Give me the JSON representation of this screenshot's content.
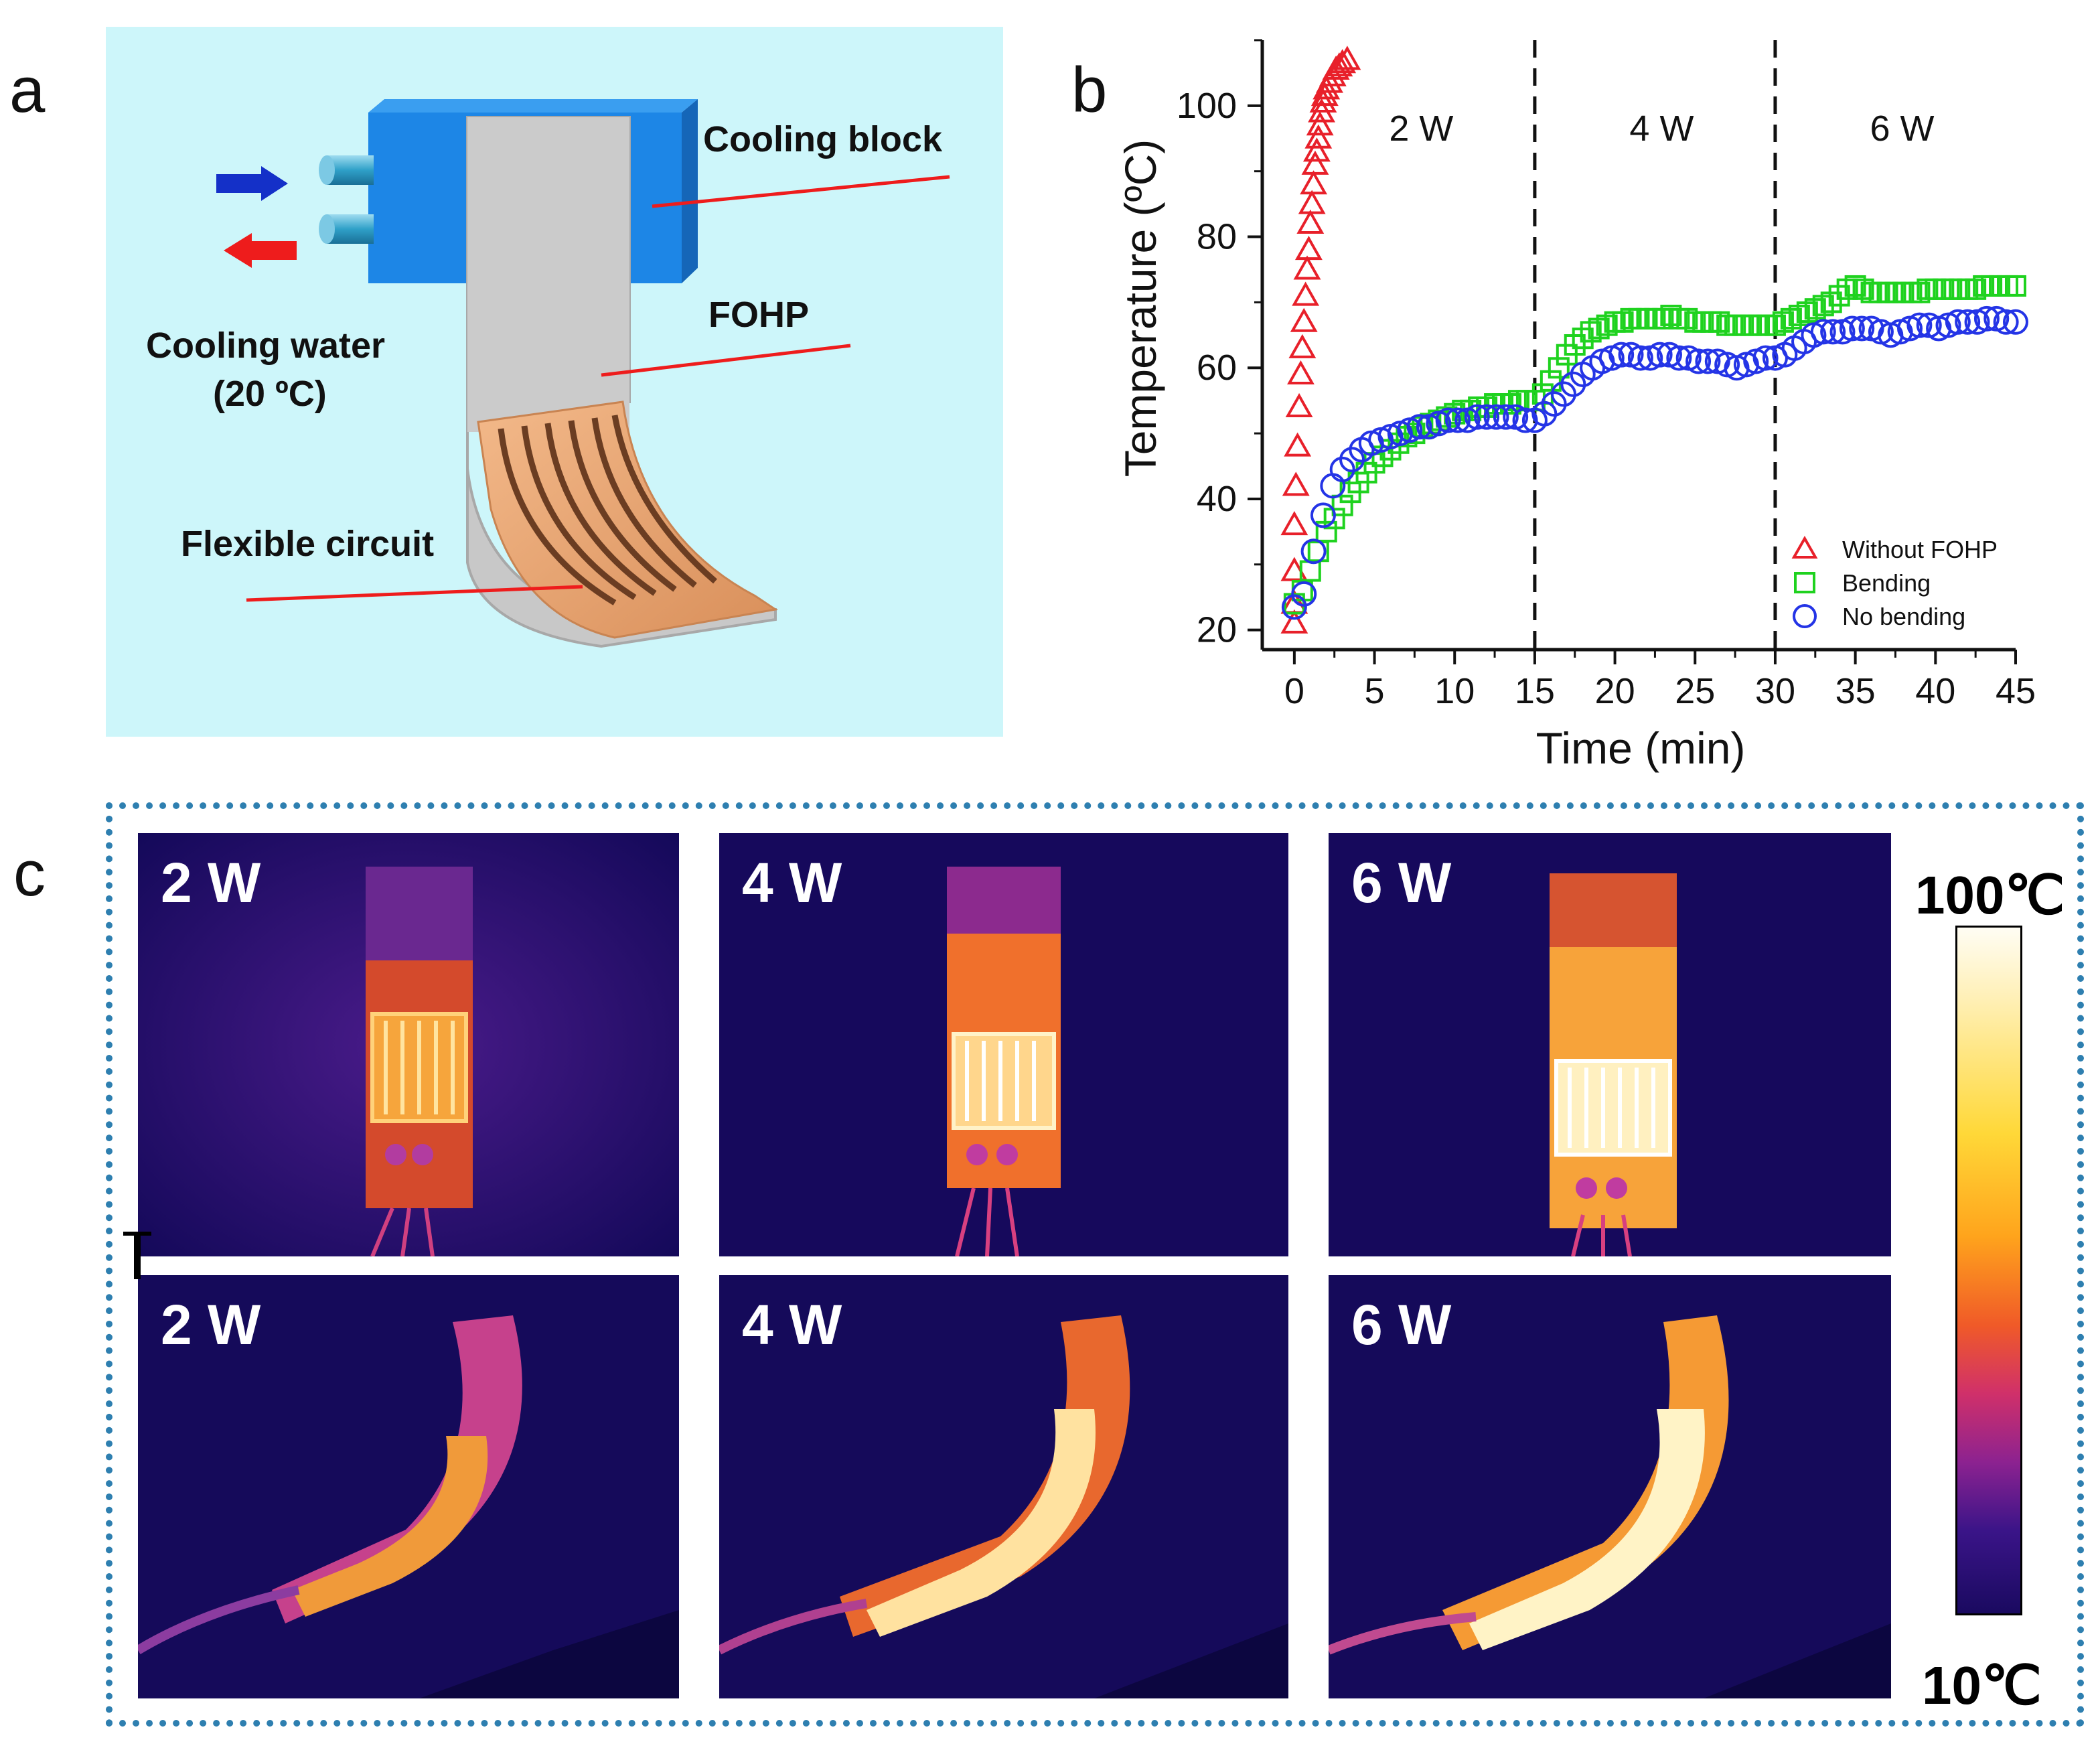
{
  "panel_labels": {
    "a": "a",
    "b": "b",
    "c": "c"
  },
  "panel_a": {
    "cooling_block": "Cooling block",
    "fohp": "FOHP",
    "cooling_water": "Cooling water",
    "cooling_water_temp": "(20 ºC)",
    "flexible_circuit": "Flexible circuit"
  },
  "chart_data": {
    "type": "scatter",
    "xlabel": "Time (min)",
    "ylabel": "Temperature (ºC)",
    "xlim": [
      -2,
      45
    ],
    "ylim": [
      17,
      110
    ],
    "xticks": [
      0,
      5,
      10,
      15,
      20,
      25,
      30,
      35,
      40,
      45
    ],
    "yticks": [
      20,
      40,
      60,
      80,
      100
    ],
    "segments": [
      {
        "label": "2 W",
        "start": 0,
        "end": 15
      },
      {
        "label": "4 W",
        "start": 15,
        "end": 30
      },
      {
        "label": "6 W",
        "start": 30,
        "end": 45
      }
    ],
    "legend_position": "bottom-right",
    "series": [
      {
        "name": "Without FOHP",
        "marker": "triangle",
        "color": "#e8202a",
        "x": [
          0,
          0,
          0,
          0,
          0.1,
          0.2,
          0.3,
          0.4,
          0.5,
          0.6,
          0.7,
          0.8,
          0.9,
          1.0,
          1.1,
          1.2,
          1.3,
          1.4,
          1.5,
          1.6,
          1.7,
          1.8,
          1.9,
          2.0,
          2.2,
          2.4,
          2.6,
          2.8,
          3.0,
          3.3
        ],
        "y": [
          21,
          24,
          29,
          36,
          42,
          48,
          54,
          59,
          63,
          67,
          71,
          75,
          78,
          82,
          85,
          88,
          91,
          93,
          95,
          97,
          99,
          100.5,
          101.5,
          102.5,
          103.5,
          104.5,
          105.5,
          106,
          106.5,
          107
        ]
      },
      {
        "name": "Bending",
        "marker": "square",
        "color": "#1fd21f",
        "x": [
          0,
          0.5,
          1,
          1.5,
          2,
          2.5,
          3,
          3.5,
          4,
          4.5,
          5,
          5.5,
          6,
          6.5,
          7,
          7.5,
          8,
          8.5,
          9,
          9.5,
          10,
          10.5,
          11,
          11.5,
          12,
          12.5,
          13,
          13.5,
          14,
          14.5,
          15,
          15.5,
          16,
          16.5,
          17,
          17.5,
          18,
          18.5,
          19,
          19.5,
          20,
          20.5,
          21,
          21.5,
          22,
          22.5,
          23,
          23.5,
          24,
          24.5,
          25,
          25.5,
          26,
          26.5,
          27,
          27.5,
          28,
          28.5,
          29,
          29.5,
          30,
          30.5,
          31,
          31.5,
          32,
          32.5,
          33,
          33.5,
          34,
          34.5,
          35,
          35.5,
          36,
          36.5,
          37,
          37.5,
          38,
          38.5,
          39,
          39.5,
          40,
          40.5,
          41,
          41.5,
          42,
          42.5,
          43,
          43.5,
          44,
          44.5,
          45
        ],
        "y": [
          24,
          26,
          29,
          32,
          35,
          37,
          39,
          41,
          42.5,
          44,
          45.5,
          46.5,
          47.5,
          48.5,
          49.5,
          50,
          51,
          51.5,
          52,
          52.5,
          53,
          53.5,
          53.5,
          54,
          54,
          54.5,
          54.5,
          54.5,
          55,
          55,
          55,
          56,
          58,
          60,
          62,
          63.5,
          64.5,
          65.5,
          66,
          66.5,
          67,
          67,
          67.5,
          67.5,
          67.5,
          67.5,
          67.5,
          68,
          67.5,
          67.5,
          67,
          67,
          67,
          67,
          66.5,
          66.5,
          66.5,
          66.5,
          66.5,
          66.5,
          66.5,
          67,
          67.5,
          68,
          68.5,
          69,
          69.5,
          70,
          71,
          72,
          72.5,
          72,
          71.5,
          71.5,
          71.5,
          71.5,
          71.5,
          71.5,
          71.5,
          72,
          72,
          72,
          72,
          72,
          72,
          72,
          72.5,
          72.5,
          72.5,
          72.5,
          72.5
        ]
      },
      {
        "name": "No bending",
        "marker": "circle",
        "color": "#2434e6",
        "x": [
          0,
          0.6,
          1.2,
          1.8,
          2.4,
          3.0,
          3.6,
          4.2,
          4.8,
          5.4,
          6,
          6.6,
          7.2,
          7.8,
          8.4,
          9,
          9.6,
          10.2,
          10.8,
          11.4,
          12,
          12.6,
          13.2,
          13.8,
          14.4,
          15,
          15.6,
          16.2,
          16.8,
          17.4,
          18,
          18.6,
          19.2,
          19.8,
          20.4,
          21,
          21.6,
          22.2,
          22.8,
          23.4,
          24,
          24.6,
          25.2,
          25.8,
          26.4,
          27,
          27.6,
          28.2,
          28.8,
          29.4,
          30,
          30.6,
          31.2,
          31.8,
          32.4,
          33,
          33.6,
          34.2,
          34.8,
          35.4,
          36,
          36.6,
          37.2,
          37.8,
          38.4,
          39,
          39.6,
          40.2,
          40.8,
          41.4,
          42,
          42.6,
          43.2,
          43.8,
          44.4,
          45
        ],
        "y": [
          23.5,
          25.5,
          32,
          37.5,
          42,
          44.5,
          46,
          47.5,
          48.5,
          49,
          49.5,
          50,
          50.5,
          51,
          51,
          51.5,
          52,
          52,
          52,
          52.5,
          52.5,
          52.5,
          52.5,
          52.5,
          52,
          52,
          53,
          54.5,
          56,
          57.5,
          59,
          60,
          61,
          61.5,
          62,
          62,
          61.5,
          61.5,
          62,
          62,
          61.5,
          61.5,
          61,
          61,
          61,
          60.5,
          60,
          60.5,
          61,
          61.5,
          61.5,
          62,
          63,
          64,
          65,
          65.5,
          65.5,
          65.5,
          66,
          66,
          66,
          65.5,
          65,
          65.5,
          66,
          66.5,
          66.5,
          66,
          66.5,
          67,
          67,
          67,
          67.5,
          67.5,
          67,
          67
        ]
      }
    ]
  },
  "panel_c": {
    "colorbar_max": "100℃",
    "colorbar_min": "10℃",
    "top_row_labels": [
      "2 W",
      "4 W",
      "6 W"
    ],
    "bottom_row_labels": [
      "2 W",
      "4 W",
      "6 W"
    ],
    "colors": {
      "cold": "#150a5a",
      "mid": "#e8402a",
      "hot": "#fff6d6"
    }
  }
}
